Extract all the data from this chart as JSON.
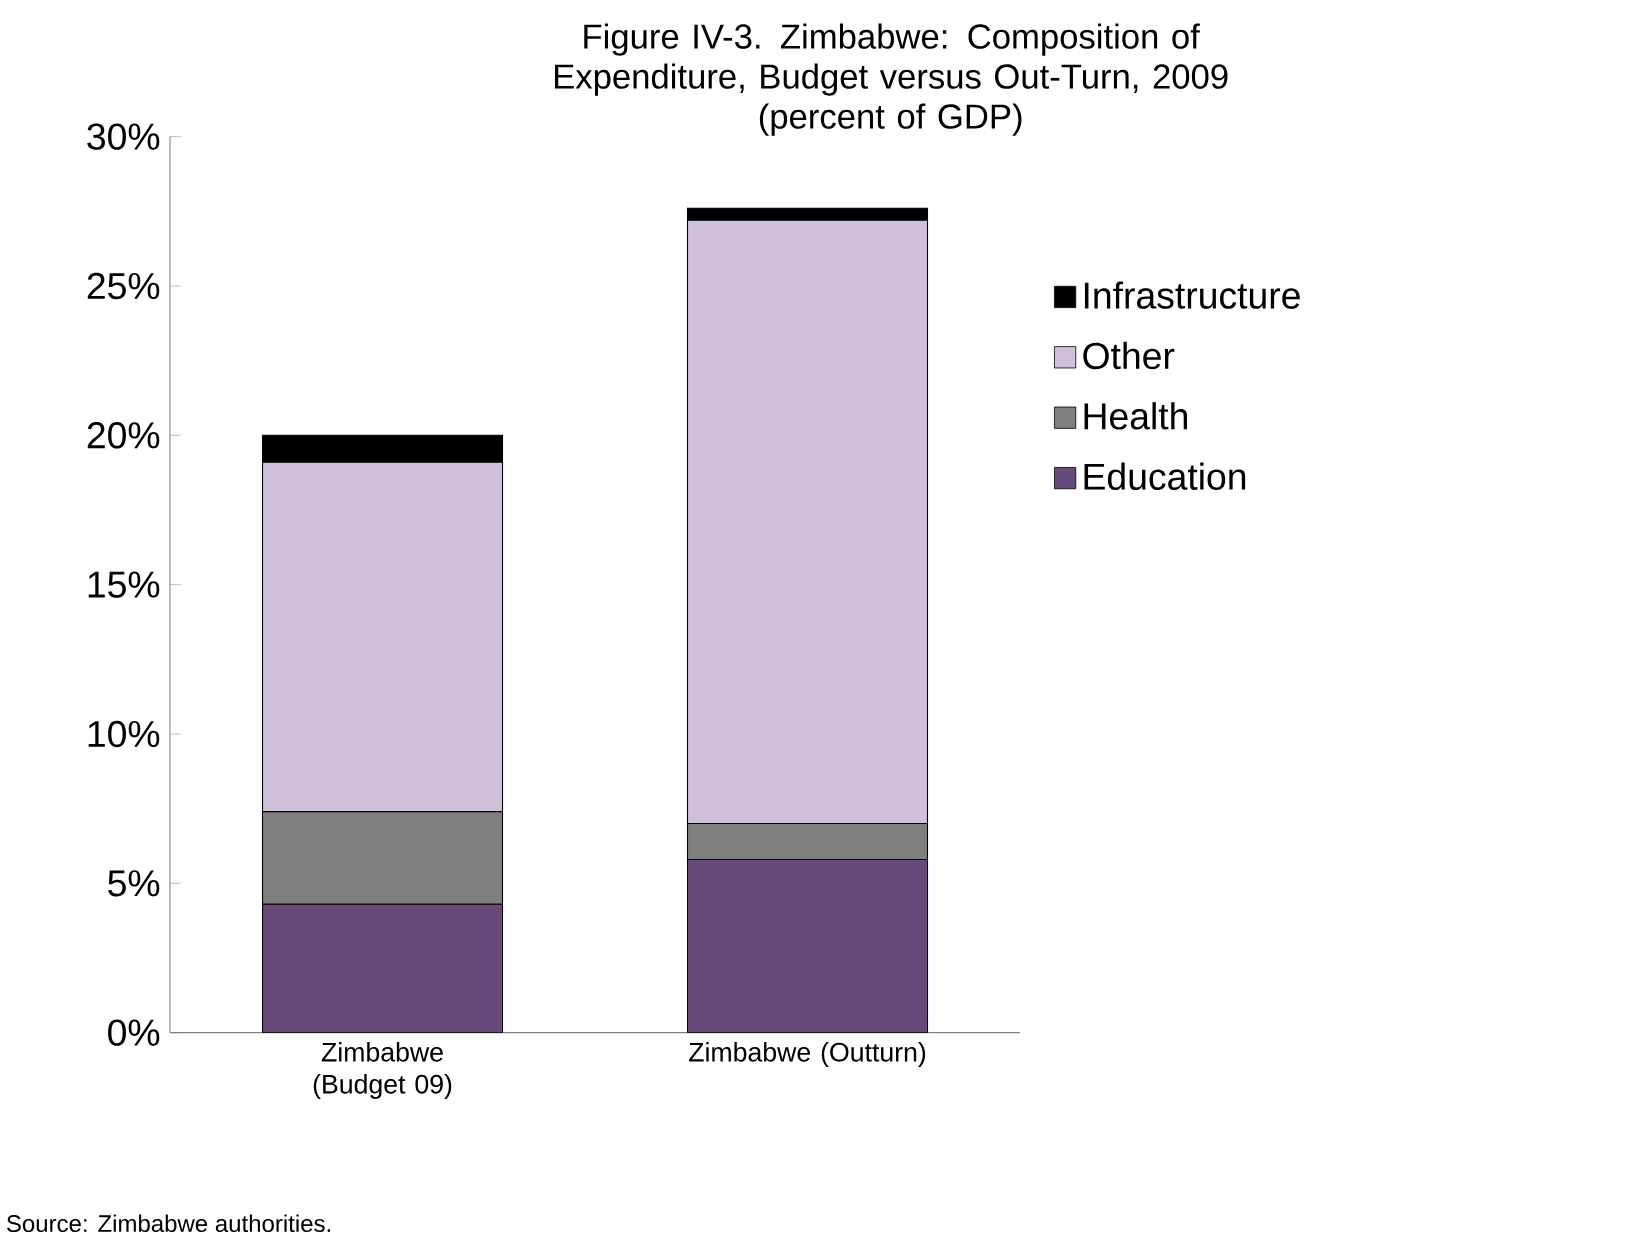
{
  "chart_data": {
    "type": "bar",
    "stacked": true,
    "title": "Figure IV-3. Zimbabwe: Composition of Expenditure, Budget versus Out-Turn, 2009",
    "subtitle": "(percent of GDP)",
    "categories": [
      "Zimbabwe (Budget 09)",
      "Zimbabwe (Outturn)"
    ],
    "series": [
      {
        "name": "Education",
        "color": "#664a7b",
        "values": [
          4.3,
          5.8
        ]
      },
      {
        "name": "Health",
        "color": "#7f7f7f",
        "values": [
          3.1,
          1.2
        ]
      },
      {
        "name": "Other",
        "color": "#d0c0da",
        "values": [
          11.7,
          20.2
        ]
      },
      {
        "name": "Infrastructure",
        "color": "#000000",
        "values": [
          0.9,
          0.4
        ]
      }
    ],
    "ylim": [
      0,
      30
    ],
    "yticks": [
      {
        "value": 0,
        "label": "0%"
      },
      {
        "value": 5,
        "label": "5%"
      },
      {
        "value": 10,
        "label": "10%"
      },
      {
        "value": 15,
        "label": "15%"
      },
      {
        "value": 20,
        "label": "20%"
      },
      {
        "value": 25,
        "label": "25%"
      },
      {
        "value": 30,
        "label": "30%"
      }
    ],
    "legend": "right",
    "annotations": [
      "Source: Zimbabwe authorities."
    ]
  }
}
